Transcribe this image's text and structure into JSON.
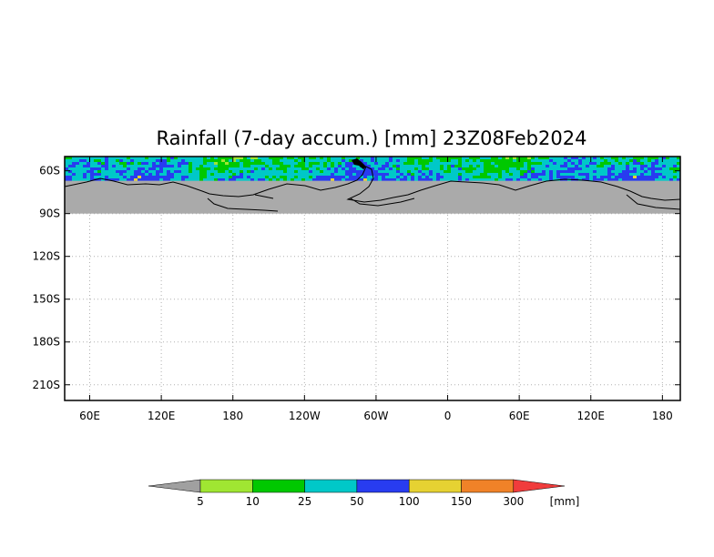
{
  "title": "Rainfall (7-day accum.) [mm] 23Z08Feb2024",
  "map": {
    "projection": "lat-lon",
    "lon_range": [
      33,
      205
    ],
    "lat_range": [
      -50,
      -221
    ],
    "data_band_lat": [
      -50,
      -67
    ],
    "land_lat": -90,
    "land_color": "#aaaaaa",
    "grid": true,
    "y_ticks": [
      {
        "lat": -60,
        "label": "60S"
      },
      {
        "lat": -90,
        "label": "90S"
      },
      {
        "lat": -120,
        "label": "120S"
      },
      {
        "lat": -150,
        "label": "150S"
      },
      {
        "lat": -180,
        "label": "180S"
      },
      {
        "lat": -210,
        "label": "210S"
      }
    ],
    "x_ticks": [
      {
        "lon": 40,
        "label": "60E"
      },
      {
        "lon": 60,
        "label": "120E"
      },
      {
        "lon": 80,
        "label": "180"
      },
      {
        "lon": 100,
        "label": "120W"
      },
      {
        "lon": 120,
        "label": "60W"
      },
      {
        "lon": 140,
        "label": "0"
      },
      {
        "lon": 160,
        "label": "60E"
      },
      {
        "lon": 180,
        "label": "120E"
      },
      {
        "lon": 200,
        "label": "180"
      }
    ]
  },
  "colorbar": {
    "unit": "[mm]",
    "below_color": "#a0a0a0",
    "above_color": "#f03c3c",
    "colors": [
      "#a0e632",
      "#00c800",
      "#00c8c8",
      "#283cf0",
      "#e6d232",
      "#f08228"
    ],
    "labels": [
      "5",
      "10",
      "25",
      "50",
      "100",
      "150",
      "300"
    ]
  }
}
